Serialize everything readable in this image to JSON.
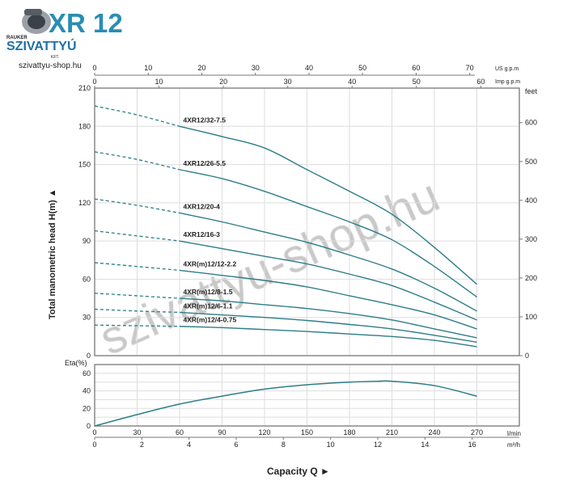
{
  "logo": {
    "title": "XR 12",
    "brand_top": "RAUKER",
    "brand_main": "SZIVATTYÚ",
    "brand_sub": "KFT.",
    "website": "szivattyu-shop.hu"
  },
  "watermark": "szivattyu-shop.hu",
  "colors": {
    "curve": "#2d7d88",
    "brand": "#2a8db3",
    "grid": "#dddddd",
    "axis": "#777777"
  },
  "chart_data": [
    {
      "type": "line",
      "ylabel": "Total manometric head H(m) ▲",
      "xlim": [
        0,
        300
      ],
      "ylim": [
        0,
        210
      ],
      "yticks": [
        0,
        30,
        60,
        90,
        120,
        150,
        180,
        210
      ],
      "grid": true,
      "right_axis": {
        "label": "feet",
        "ticks": [
          0,
          100,
          200,
          300,
          400,
          500,
          600
        ]
      },
      "top_axes": [
        {
          "label": "US g.p.m",
          "ticks": [
            0,
            10,
            20,
            30,
            40,
            50,
            60,
            70
          ]
        },
        {
          "label": "Imp g.p.m",
          "ticks": [
            0,
            10,
            20,
            30,
            40,
            50,
            60
          ]
        }
      ],
      "x": [
        0,
        30,
        60,
        90,
        120,
        150,
        180,
        210,
        240,
        270
      ],
      "dashed_until": 60,
      "series": [
        {
          "name": "4XR12/32-7.5",
          "values": [
            196,
            189,
            180,
            172,
            163,
            146,
            129,
            111,
            85,
            56
          ]
        },
        {
          "name": "4XR12/26-5.5",
          "values": [
            160,
            154,
            146,
            139,
            129,
            117,
            105,
            91,
            70,
            46
          ]
        },
        {
          "name": "4XR12/20-4",
          "values": [
            123,
            118,
            112,
            105,
            97,
            89,
            79,
            68,
            53,
            35
          ]
        },
        {
          "name": "4XR12/16-3",
          "values": [
            98,
            94,
            90,
            84,
            78,
            72,
            64,
            55,
            42,
            28
          ]
        },
        {
          "name": "4XR(m)12/12-2.2",
          "values": [
            73,
            70,
            67,
            63,
            59,
            54,
            47,
            40,
            32,
            21
          ]
        },
        {
          "name": "4XR(m)12/8-1.5",
          "values": [
            49,
            47,
            45,
            43,
            40,
            37,
            33,
            28,
            21,
            14
          ]
        },
        {
          "name": "4XR(m)12/6-1.1",
          "values": [
            36.5,
            35,
            34,
            32,
            30,
            27.6,
            24.5,
            21,
            16,
            10.6
          ]
        },
        {
          "name": "4XR(m)12/4-0.75",
          "values": [
            24,
            23.5,
            23,
            22,
            20.5,
            19,
            17,
            15,
            12,
            7
          ]
        }
      ]
    },
    {
      "type": "line",
      "ylabel": "Eta(%)",
      "xlabel": "Capacity Q ►",
      "xlim": [
        0,
        300
      ],
      "ylim": [
        0,
        70
      ],
      "yticks": [
        0,
        20,
        40,
        60
      ],
      "grid": true,
      "x_axes": [
        {
          "label": "l/min",
          "ticks": [
            0,
            30,
            60,
            90,
            120,
            150,
            180,
            210,
            240,
            270
          ]
        },
        {
          "label": "m³/h",
          "ticks": [
            0,
            2,
            4,
            6,
            8,
            10,
            12,
            14,
            16
          ]
        }
      ],
      "x": [
        0,
        30,
        60,
        90,
        120,
        150,
        180,
        200,
        210,
        240,
        270
      ],
      "series": [
        {
          "values": [
            0,
            13,
            25,
            34,
            42,
            47,
            50,
            51,
            51,
            46,
            34
          ]
        }
      ]
    }
  ]
}
